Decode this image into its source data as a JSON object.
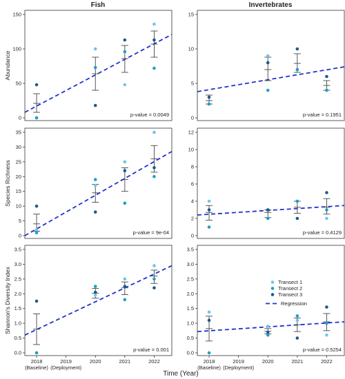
{
  "x_axis_title": "Time (Year)",
  "x_ticks": [
    {
      "x": 2018,
      "label": "2018",
      "sub": "(Baseline)"
    },
    {
      "x": 2019,
      "label": "2019",
      "sub": "(Deployment)"
    },
    {
      "x": 2020,
      "label": "2020",
      "sub": ""
    },
    {
      "x": 2021,
      "label": "2021",
      "sub": ""
    },
    {
      "x": 2022,
      "label": "2022",
      "sub": ""
    }
  ],
  "legend": {
    "items": [
      {
        "label": "Transect 1",
        "color": "#6ec6e8"
      },
      {
        "label": "Transect 2",
        "color": "#1f9ec6"
      },
      {
        "label": "Transect 3",
        "color": "#1a5a8c"
      }
    ],
    "regression_label": "Regression",
    "regression_color": "#1f2fd0"
  },
  "chart_data": [
    {
      "type": "scatter",
      "column_title": "Fish",
      "ylabel": "Abundance",
      "ylim": [
        0,
        150
      ],
      "yticks": [
        0,
        50,
        100,
        150
      ],
      "p_value": "p-value = 0.0049",
      "points": [
        {
          "x": 2018,
          "t1": 0,
          "t2": 0,
          "t3": 48
        },
        {
          "x": 2020,
          "t1": 100,
          "t2": 73,
          "t3": 18
        },
        {
          "x": 2021,
          "t1": 48,
          "t2": 96,
          "t3": 113
        },
        {
          "x": 2022,
          "t1": 136,
          "t2": 72,
          "t3": 113
        }
      ],
      "error_bars": [
        {
          "x": 2018,
          "mean": 21,
          "low": 8,
          "high": 35
        },
        {
          "x": 2020,
          "mean": 64,
          "low": 40,
          "high": 88
        },
        {
          "x": 2021,
          "mean": 86,
          "low": 66,
          "high": 105
        },
        {
          "x": 2022,
          "mean": 107,
          "low": 88,
          "high": 126
        }
      ],
      "regression": {
        "x0": 2017.6,
        "y0": 8,
        "x1": 2022.6,
        "y1": 121
      }
    },
    {
      "type": "scatter",
      "column_title": "Invertebrates",
      "ylabel": "",
      "ylim": [
        0,
        15
      ],
      "yticks": [
        0,
        5,
        10,
        15
      ],
      "p_value": "p-value = 0.1951",
      "points": [
        {
          "x": 2018,
          "t1": 2,
          "t2": 2,
          "t3": 3
        },
        {
          "x": 2020,
          "t1": 9,
          "t2": 4,
          "t3": 8
        },
        {
          "x": 2021,
          "t1": 7,
          "t2": 7,
          "t3": 10
        },
        {
          "x": 2022,
          "t1": 4,
          "t2": 4,
          "t3": 6
        }
      ],
      "error_bars": [
        {
          "x": 2018,
          "mean": 2.5,
          "low": 2.0,
          "high": 3.3
        },
        {
          "x": 2020,
          "mean": 7.0,
          "low": 5.4,
          "high": 8.8
        },
        {
          "x": 2021,
          "mean": 7.9,
          "low": 6.6,
          "high": 9.3
        },
        {
          "x": 2022,
          "mean": 4.7,
          "low": 4.0,
          "high": 5.4
        }
      ],
      "regression": {
        "x0": 2017.6,
        "y0": 3.8,
        "x1": 2022.6,
        "y1": 7.4
      }
    },
    {
      "type": "scatter",
      "column_title": "",
      "ylabel": "Species Richness",
      "ylim": [
        0,
        35
      ],
      "yticks": [
        0,
        5,
        10,
        15,
        20,
        25,
        30,
        35
      ],
      "p_value": "p-value = 9e-04",
      "points": [
        {
          "x": 2018,
          "t1": 2,
          "t2": 1,
          "t3": 10
        },
        {
          "x": 2020,
          "t1": 17,
          "t2": 19,
          "t3": 8
        },
        {
          "x": 2021,
          "t1": 25,
          "t2": 11,
          "t3": 22
        },
        {
          "x": 2022,
          "t1": 35,
          "t2": 20,
          "t3": 23
        }
      ],
      "error_bars": [
        {
          "x": 2018,
          "mean": 4,
          "low": 1.5,
          "high": 7.3
        },
        {
          "x": 2020,
          "mean": 14.5,
          "low": 11.3,
          "high": 17.4
        },
        {
          "x": 2021,
          "mean": 19,
          "low": 15,
          "high": 23
        },
        {
          "x": 2022,
          "mean": 26,
          "low": 21.5,
          "high": 30.5
        }
      ],
      "regression": {
        "x0": 2017.6,
        "y0": 0,
        "x1": 2022.6,
        "y1": 28.5
      }
    },
    {
      "type": "scatter",
      "column_title": "",
      "ylabel": "",
      "ylim": [
        0,
        12
      ],
      "yticks": [
        0,
        2,
        4,
        6,
        8,
        10,
        12
      ],
      "p_value": "p-value = 0.4129",
      "points": [
        {
          "x": 2018,
          "t1": 4,
          "t2": 1,
          "t3": 3
        },
        {
          "x": 2020,
          "t1": 3,
          "t2": 2,
          "t3": 3
        },
        {
          "x": 2021,
          "t1": 4,
          "t2": 4,
          "t3": 2
        },
        {
          "x": 2022,
          "t1": 2,
          "t2": 3,
          "t3": 5
        }
      ],
      "error_bars": [
        {
          "x": 2018,
          "mean": 2.7,
          "low": 1.8,
          "high": 3.5
        },
        {
          "x": 2020,
          "mean": 2.7,
          "low": 2.1,
          "high": 3.0
        },
        {
          "x": 2021,
          "mean": 3.3,
          "low": 2.6,
          "high": 4.0
        },
        {
          "x": 2022,
          "mean": 3.3,
          "low": 2.5,
          "high": 4.3
        }
      ],
      "regression": {
        "x0": 2017.6,
        "y0": 2.4,
        "x1": 2022.6,
        "y1": 3.5
      }
    },
    {
      "type": "scatter",
      "column_title": "",
      "ylabel": "Shannon's Diversity Index",
      "ylim": [
        0,
        3.5
      ],
      "yticks": [
        0.0,
        0.5,
        1.0,
        1.5,
        2.0,
        2.5,
        3.0,
        3.5
      ],
      "ytick_labels": [
        "0.0",
        "0.5",
        "1.0",
        "1.5",
        "2.0",
        "2.5",
        "3.0",
        "3.5"
      ],
      "p_value": "p-value = 0.001",
      "points": [
        {
          "x": 2018,
          "t1": 0.0,
          "t2": 0.0,
          "t3": 1.75
        },
        {
          "x": 2020,
          "t1": 1.95,
          "t2": 2.25,
          "t3": 2.05
        },
        {
          "x": 2021,
          "t1": 2.5,
          "t2": 1.8,
          "t3": 2.25
        },
        {
          "x": 2022,
          "t1": 2.95,
          "t2": 2.5,
          "t3": 2.2
        }
      ],
      "error_bars": [
        {
          "x": 2018,
          "mean": 0.8,
          "low": 0.28,
          "high": 1.32
        },
        {
          "x": 2020,
          "mean": 2.02,
          "low": 1.85,
          "high": 2.18
        },
        {
          "x": 2021,
          "mean": 2.2,
          "low": 1.97,
          "high": 2.4
        },
        {
          "x": 2022,
          "mean": 2.6,
          "low": 2.35,
          "high": 2.8
        }
      ],
      "regression": {
        "x0": 2017.6,
        "y0": 0.6,
        "x1": 2022.6,
        "y1": 2.95
      }
    },
    {
      "type": "scatter",
      "column_title": "",
      "ylabel": "",
      "ylim": [
        0,
        3.5
      ],
      "yticks": [
        0.0,
        0.5,
        1.0,
        1.5,
        2.0,
        2.5,
        3.0,
        3.5
      ],
      "ytick_labels": [
        "0.0",
        "0.5",
        "1.0",
        "1.5",
        "2.0",
        "2.5",
        "3.0",
        "3.5"
      ],
      "p_value": "p-value = 0.5254",
      "points": [
        {
          "x": 2018,
          "t1": 1.38,
          "t2": 0.0,
          "t3": 1.1
        },
        {
          "x": 2020,
          "t1": 0.9,
          "t2": 0.6,
          "t3": 0.7
        },
        {
          "x": 2021,
          "t1": 1.1,
          "t2": 1.25,
          "t3": 0.5
        },
        {
          "x": 2022,
          "t1": 0.6,
          "t2": 1.0,
          "t3": 1.55
        }
      ],
      "error_bars": [
        {
          "x": 2018,
          "mean": 0.82,
          "low": 0.4,
          "high": 1.24
        },
        {
          "x": 2020,
          "mean": 0.73,
          "low": 0.64,
          "high": 0.82
        },
        {
          "x": 2021,
          "mean": 0.95,
          "low": 0.72,
          "high": 1.18
        },
        {
          "x": 2022,
          "mean": 1.05,
          "low": 0.75,
          "high": 1.33
        }
      ],
      "regression": {
        "x0": 2017.6,
        "y0": 0.72,
        "x1": 2022.6,
        "y1": 1.05
      }
    }
  ]
}
